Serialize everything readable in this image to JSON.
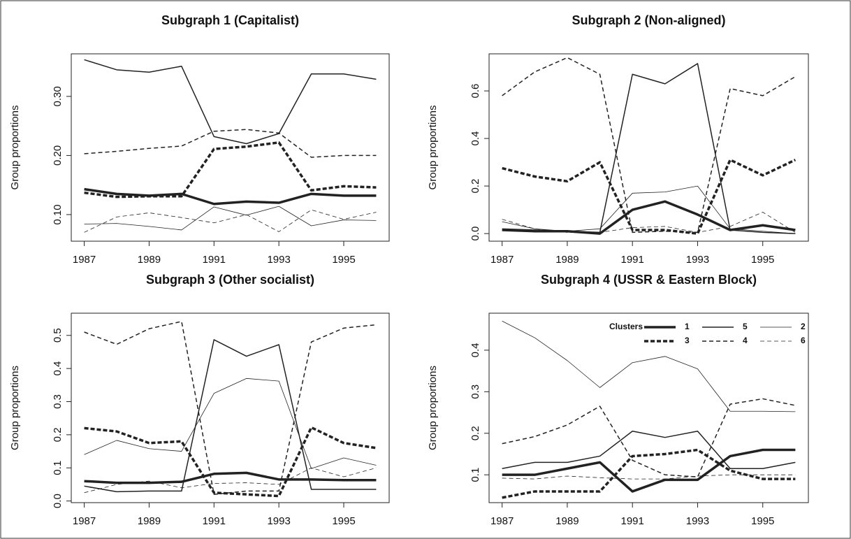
{
  "chart_data": [
    {
      "type": "line",
      "title": "Subgraph 1 (Capitalist)",
      "ylabel": "Group proportions",
      "color": "#222222",
      "x": [
        1987,
        1988,
        1989,
        1990,
        1991,
        1992,
        1993,
        1994,
        1995,
        1996
      ],
      "xlim": [
        1986.6,
        1996.4
      ],
      "xticks": [
        1987,
        1989,
        1991,
        1993,
        1995
      ],
      "ylim": [
        0.055,
        0.372
      ],
      "yticks": [
        {
          "value": 0.1,
          "label": "0.10"
        },
        {
          "value": 0.2,
          "label": "0.20"
        },
        {
          "value": 0.3,
          "label": "0.30"
        }
      ],
      "series": [
        {
          "linewidth": 3.5,
          "dash": false,
          "values": [
            0.143,
            0.135,
            0.132,
            0.135,
            0.118,
            0.122,
            0.12,
            0.135,
            0.132,
            0.132
          ]
        },
        {
          "linewidth": 1.5,
          "dash": false,
          "values": [
            0.362,
            0.345,
            0.341,
            0.351,
            0.232,
            0.22,
            0.237,
            0.338,
            0.338,
            0.329
          ]
        },
        {
          "linewidth": 0.8,
          "dash": false,
          "values": [
            0.084,
            0.085,
            0.08,
            0.074,
            0.113,
            0.099,
            0.114,
            0.081,
            0.091,
            0.09
          ]
        },
        {
          "linewidth": 3.5,
          "dash": true,
          "values": [
            0.137,
            0.13,
            0.131,
            0.131,
            0.211,
            0.215,
            0.222,
            0.141,
            0.148,
            0.146
          ]
        },
        {
          "linewidth": 1.5,
          "dash": true,
          "values": [
            0.203,
            0.207,
            0.212,
            0.216,
            0.241,
            0.244,
            0.238,
            0.197,
            0.2,
            0.2
          ]
        },
        {
          "linewidth": 0.8,
          "dash": true,
          "values": [
            0.07,
            0.096,
            0.103,
            0.095,
            0.086,
            0.1,
            0.071,
            0.108,
            0.092,
            0.104
          ]
        }
      ]
    },
    {
      "type": "line",
      "title": "Subgraph 2 (Non-aligned)",
      "ylabel": "Group proportions",
      "color": "#222222",
      "x": [
        1987,
        1988,
        1989,
        1990,
        1991,
        1992,
        1993,
        1994,
        1995,
        1996
      ],
      "xlim": [
        1986.6,
        1996.4
      ],
      "xticks": [
        1987,
        1989,
        1991,
        1993,
        1995
      ],
      "ylim": [
        -0.032,
        0.756
      ],
      "yticks": [
        {
          "value": 0,
          "label": "0.0"
        },
        0.2,
        0.4,
        0.6
      ],
      "series": [
        {
          "linewidth": 3.5,
          "dash": false,
          "values": [
            0.015,
            0.01,
            0.01,
            0.0,
            0.1,
            0.135,
            0.08,
            0.015,
            0.035,
            0.015
          ]
        },
        {
          "linewidth": 1.5,
          "dash": false,
          "values": [
            0.02,
            0.015,
            0.01,
            0.005,
            0.67,
            0.63,
            0.715,
            0.015,
            0.005,
            0.0
          ]
        },
        {
          "linewidth": 0.8,
          "dash": false,
          "values": [
            0.05,
            0.02,
            0.01,
            0.02,
            0.17,
            0.175,
            0.2,
            0.02,
            0.01,
            0.0
          ]
        },
        {
          "linewidth": 3.5,
          "dash": true,
          "values": [
            0.275,
            0.24,
            0.22,
            0.3,
            0.015,
            0.015,
            0.0,
            0.31,
            0.245,
            0.31
          ]
        },
        {
          "linewidth": 1.5,
          "dash": true,
          "values": [
            0.58,
            0.68,
            0.74,
            0.67,
            0.005,
            0.01,
            0.005,
            0.61,
            0.58,
            0.66
          ]
        },
        {
          "linewidth": 0.8,
          "dash": true,
          "values": [
            0.06,
            0.02,
            0.005,
            0.005,
            0.025,
            0.03,
            0.005,
            0.03,
            0.09,
            0.005
          ]
        }
      ]
    },
    {
      "type": "line",
      "title": "Subgraph 3 (Other socialist)",
      "ylabel": "Group proportions",
      "color": "#222222",
      "x": [
        1987,
        1988,
        1989,
        1990,
        1991,
        1992,
        1993,
        1994,
        1995,
        1996
      ],
      "xlim": [
        1986.6,
        1996.4
      ],
      "xticks": [
        1987,
        1989,
        1991,
        1993,
        1995
      ],
      "ylim": [
        -0.005,
        0.567
      ],
      "yticks": [
        {
          "value": 0,
          "label": "0.0"
        },
        0.1,
        0.2,
        0.3,
        0.4,
        0.5
      ],
      "series": [
        {
          "linewidth": 3.5,
          "dash": false,
          "values": [
            0.06,
            0.055,
            0.055,
            0.058,
            0.082,
            0.085,
            0.065,
            0.065,
            0.063,
            0.063
          ]
        },
        {
          "linewidth": 1.5,
          "dash": false,
          "values": [
            0.045,
            0.028,
            0.03,
            0.03,
            0.487,
            0.437,
            0.472,
            0.035,
            0.035,
            0.035
          ]
        },
        {
          "linewidth": 0.8,
          "dash": false,
          "values": [
            0.14,
            0.183,
            0.158,
            0.15,
            0.325,
            0.37,
            0.362,
            0.098,
            0.13,
            0.108
          ]
        },
        {
          "linewidth": 3.5,
          "dash": true,
          "values": [
            0.22,
            0.21,
            0.175,
            0.18,
            0.025,
            0.02,
            0.015,
            0.222,
            0.175,
            0.16
          ]
        },
        {
          "linewidth": 1.5,
          "dash": true,
          "values": [
            0.51,
            0.473,
            0.52,
            0.542,
            0.02,
            0.03,
            0.03,
            0.48,
            0.522,
            0.532
          ]
        },
        {
          "linewidth": 0.8,
          "dash": true,
          "values": [
            0.025,
            0.05,
            0.06,
            0.04,
            0.053,
            0.055,
            0.05,
            0.1,
            0.073,
            0.1
          ]
        }
      ]
    },
    {
      "type": "line",
      "title": "Subgraph 4 (USSR & Eastern Block)",
      "ylabel": "Group proportions",
      "color": "#222222",
      "x": [
        1987,
        1988,
        1989,
        1990,
        1991,
        1992,
        1993,
        1994,
        1995,
        1996
      ],
      "xlim": [
        1986.6,
        1996.4
      ],
      "xticks": [
        1987,
        1989,
        1991,
        1993,
        1995
      ],
      "ylim": [
        0.033,
        0.489
      ],
      "yticks": [
        0.1,
        0.2,
        0.3,
        0.4
      ],
      "legend": "top-right",
      "legend_title": "Clusters",
      "series": [
        {
          "name": "1",
          "linewidth": 3.5,
          "dash": false,
          "values": [
            0.1,
            0.1,
            0.115,
            0.13,
            0.06,
            0.088,
            0.088,
            0.145,
            0.16,
            0.16
          ]
        },
        {
          "name": "5",
          "linewidth": 1.5,
          "dash": false,
          "values": [
            0.115,
            0.13,
            0.13,
            0.145,
            0.205,
            0.19,
            0.205,
            0.115,
            0.115,
            0.13
          ]
        },
        {
          "name": "2",
          "linewidth": 0.8,
          "dash": false,
          "values": [
            0.47,
            0.43,
            0.375,
            0.31,
            0.37,
            0.385,
            0.355,
            0.253,
            0.253,
            0.252
          ]
        },
        {
          "name": "3",
          "linewidth": 3.5,
          "dash": true,
          "values": [
            0.045,
            0.06,
            0.06,
            0.06,
            0.145,
            0.15,
            0.16,
            0.11,
            0.09,
            0.09
          ]
        },
        {
          "name": "4",
          "linewidth": 1.5,
          "dash": true,
          "values": [
            0.175,
            0.192,
            0.22,
            0.265,
            0.135,
            0.1,
            0.095,
            0.27,
            0.283,
            0.267
          ]
        },
        {
          "name": "6",
          "linewidth": 0.8,
          "dash": true,
          "values": [
            0.092,
            0.09,
            0.097,
            0.093,
            0.09,
            0.09,
            0.097,
            0.1,
            0.1,
            0.1
          ]
        }
      ]
    }
  ]
}
